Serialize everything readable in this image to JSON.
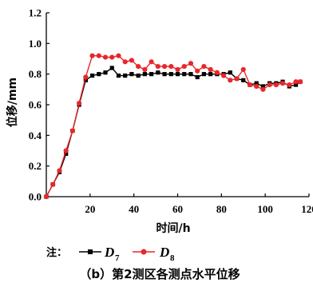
{
  "chart_data": {
    "type": "line",
    "xlabel": "时间/h",
    "ylabel": "位移/mm",
    "xlim": [
      0,
      120
    ],
    "ylim": [
      0,
      1.2
    ],
    "xticks": [
      "20",
      "40",
      "60",
      "80",
      "100",
      "120"
    ],
    "yticks": [
      "0.0",
      "0.2",
      "0.4",
      "0.6",
      "0.8",
      "1.0",
      "1.2"
    ],
    "grid": false,
    "legend_prefix": "注：",
    "series": [
      {
        "name": "D",
        "subscript": "7",
        "color": "#000000",
        "marker": "square",
        "x": [
          0,
          3,
          6,
          9,
          12,
          15,
          18,
          21,
          24,
          27,
          30,
          33,
          36,
          39,
          42,
          45,
          48,
          51,
          54,
          57,
          60,
          63,
          66,
          69,
          72,
          75,
          78,
          81,
          84,
          87,
          90,
          93,
          96,
          99,
          102,
          105,
          108,
          111,
          114,
          116
        ],
        "y": [
          0.0,
          0.08,
          0.16,
          0.28,
          0.43,
          0.6,
          0.76,
          0.79,
          0.8,
          0.81,
          0.84,
          0.79,
          0.79,
          0.8,
          0.79,
          0.8,
          0.8,
          0.81,
          0.8,
          0.8,
          0.8,
          0.8,
          0.8,
          0.78,
          0.8,
          0.8,
          0.8,
          0.8,
          0.81,
          0.77,
          0.76,
          0.73,
          0.74,
          0.72,
          0.74,
          0.74,
          0.75,
          0.72,
          0.73,
          0.75
        ]
      },
      {
        "name": "D",
        "subscript": "8",
        "color": "#e8272a",
        "marker": "circle",
        "x": [
          0,
          3,
          6,
          9,
          12,
          15,
          18,
          21,
          24,
          27,
          30,
          33,
          36,
          39,
          42,
          45,
          48,
          51,
          54,
          57,
          60,
          63,
          66,
          69,
          72,
          75,
          78,
          81,
          84,
          87,
          90,
          93,
          96,
          99,
          102,
          105,
          108,
          111,
          114,
          116
        ],
        "y": [
          0.0,
          0.08,
          0.17,
          0.3,
          0.43,
          0.61,
          0.78,
          0.92,
          0.92,
          0.91,
          0.91,
          0.92,
          0.88,
          0.89,
          0.85,
          0.83,
          0.88,
          0.85,
          0.85,
          0.85,
          0.83,
          0.85,
          0.87,
          0.82,
          0.85,
          0.83,
          0.81,
          0.79,
          0.76,
          0.77,
          0.83,
          0.73,
          0.72,
          0.7,
          0.73,
          0.73,
          0.74,
          0.73,
          0.75,
          0.75
        ]
      }
    ]
  },
  "caption": "（b）第2测区各测点水平位移"
}
